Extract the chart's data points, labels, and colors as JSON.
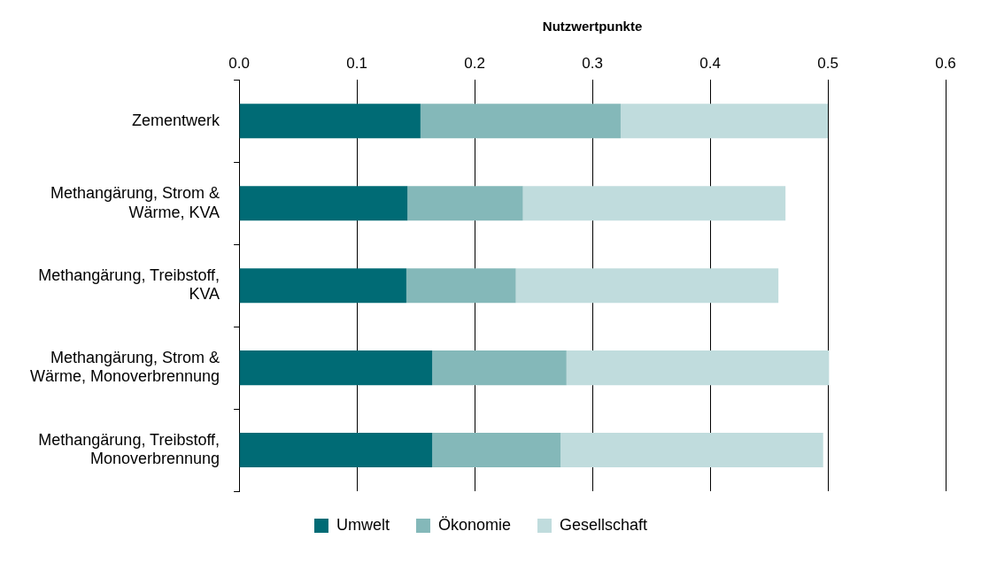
{
  "chart_data": {
    "type": "bar",
    "orientation": "horizontal",
    "stacked": true,
    "xlabel": "Nutzwertpunkte",
    "categories": [
      "Zementwerk",
      "Methangärung, Strom & Wärme, KVA",
      "Methangärung, Treibstoff, KVA",
      "Methangärung, Strom & Wärme, Monoverbrennung",
      "Methangärung, Treibstoff, Monoverbrennung"
    ],
    "series": [
      {
        "name": "Umwelt",
        "color": "#006b75",
        "values": [
          0.154,
          0.143,
          0.142,
          0.164,
          0.164
        ]
      },
      {
        "name": "Ökonomie",
        "color": "#84b8b9",
        "values": [
          0.17,
          0.098,
          0.093,
          0.114,
          0.109
        ]
      },
      {
        "name": "Gesellschaft",
        "color": "#c0dcdd",
        "values": [
          0.176,
          0.223,
          0.223,
          0.223,
          0.223
        ]
      }
    ],
    "xlim": [
      0,
      0.6
    ],
    "xticks": [
      {
        "value": 0,
        "label": "0.0"
      },
      {
        "value": 0.1,
        "label": "0.1"
      },
      {
        "value": 0.2,
        "label": "0.2"
      },
      {
        "value": 0.3,
        "label": "0.3"
      },
      {
        "value": 0.4,
        "label": "0.4"
      },
      {
        "value": 0.5,
        "label": "0.5"
      },
      {
        "value": 0.6,
        "label": "0.6"
      }
    ],
    "grid": "x",
    "legend": "bottom"
  }
}
